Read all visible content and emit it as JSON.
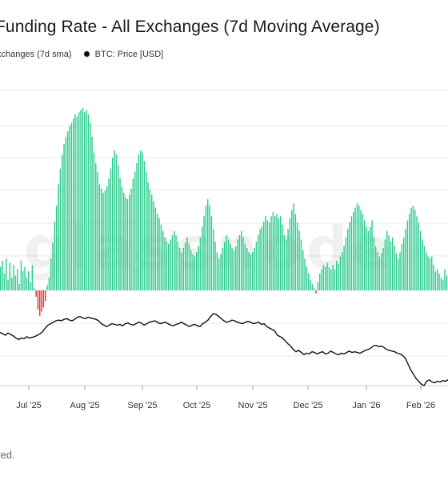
{
  "title": "Funding Rate - All Exchanges (7d Moving Average)",
  "legend": [
    {
      "label": "xchanges (7d sma)"
    },
    {
      "label": "BTC: Price [USD]",
      "color": "#000000"
    }
  ],
  "footer": "ved.",
  "watermark": "glassnode",
  "colors": {
    "positive": "#2ecc8f",
    "negative": "#e03a3a",
    "price": "#111111",
    "grid": "#ebebeb"
  },
  "chart_data": [
    {
      "type": "bar",
      "name": "Funding Rate (7d sma)",
      "x_axis": "time",
      "x_ticks": [
        "Jul '25",
        "Aug '25",
        "Sep '25",
        "Oct '25",
        "Nov '25",
        "Dec '25",
        "Jan '26",
        "Feb '26"
      ],
      "y_scale_note": "relative (axis labels not visible); 0 = zero line",
      "series": [
        {
          "values": [
            0.22,
            0.28,
            0.16,
            0.3,
            0.1,
            0.26,
            0.12,
            0.24,
            0.14,
            0.2,
            0.06,
            0.28,
            0.18,
            0.22,
            0.12,
            0.18,
            0.08,
            0.24,
            0.02,
            -0.06,
            -0.18,
            -0.24,
            -0.2,
            -0.16,
            -0.1,
            0.05,
            0.12,
            0.3,
            0.45,
            0.65,
            0.8,
            1.0,
            1.15,
            1.28,
            1.38,
            1.45,
            1.5,
            1.55,
            1.58,
            1.62,
            1.66,
            1.64,
            1.68,
            1.7,
            1.72,
            1.68,
            1.7,
            1.66,
            1.58,
            1.45,
            1.3,
            1.2,
            1.12,
            1.0,
            0.96,
            0.92,
            0.94,
            0.98,
            1.05,
            1.15,
            1.25,
            1.32,
            1.28,
            1.18,
            1.06,
            0.98,
            0.92,
            0.88,
            0.86,
            0.9,
            0.96,
            1.05,
            1.12,
            1.2,
            1.28,
            1.32,
            1.3,
            1.22,
            1.12,
            1.02,
            0.95,
            0.9,
            0.84,
            0.78,
            0.72,
            0.68,
            0.62,
            0.56,
            0.5,
            0.46,
            0.44,
            0.48,
            0.52,
            0.56,
            0.52,
            0.46,
            0.4,
            0.36,
            0.4,
            0.45,
            0.5,
            0.44,
            0.38,
            0.34,
            0.32,
            0.36,
            0.42,
            0.5,
            0.6,
            0.7,
            0.8,
            0.86,
            0.8,
            0.7,
            0.58,
            0.46,
            0.36,
            0.3,
            0.34,
            0.4,
            0.46,
            0.52,
            0.48,
            0.44,
            0.4,
            0.38,
            0.42,
            0.48,
            0.52,
            0.56,
            0.5,
            0.44,
            0.4,
            0.36,
            0.34,
            0.36,
            0.4,
            0.46,
            0.52,
            0.58,
            0.6,
            0.65,
            0.7,
            0.66,
            0.64,
            0.7,
            0.74,
            0.7,
            0.72,
            0.68,
            0.7,
            0.62,
            0.52,
            0.48,
            0.58,
            0.68,
            0.76,
            0.82,
            0.72,
            0.64,
            0.56,
            0.48,
            0.38,
            0.3,
            0.22,
            0.16,
            0.1,
            0.06,
            0.02,
            -0.03,
            0.08,
            0.16,
            0.2,
            0.24,
            0.22,
            0.26,
            0.22,
            0.2,
            0.24,
            0.2,
            0.28,
            0.25,
            0.32,
            0.36,
            0.42,
            0.5,
            0.58,
            0.64,
            0.7,
            0.74,
            0.78,
            0.82,
            0.8,
            0.76,
            0.72,
            0.66,
            0.6,
            0.56,
            0.6,
            0.66,
            0.5,
            0.42,
            0.36,
            0.32,
            0.35,
            0.4,
            0.48,
            0.56,
            0.52,
            0.46,
            0.5,
            0.42,
            0.35,
            0.3,
            0.36,
            0.44,
            0.5,
            0.58,
            0.66,
            0.72,
            0.78,
            0.8,
            0.76,
            0.7,
            0.64,
            0.56,
            0.48,
            0.42,
            0.36,
            0.32,
            0.3,
            0.32,
            0.24,
            0.18,
            0.2,
            0.16,
            0.12,
            0.1,
            0.2,
            0.14
          ]
        }
      ]
    },
    {
      "type": "line",
      "name": "BTC: Price [USD]",
      "x_axis": "time",
      "y_scale_note": "relative (axis labels not visible)",
      "series": [
        {
          "name": "BTC: Price [USD]",
          "values": [
            0.74,
            0.72,
            0.7,
            0.73,
            0.71,
            0.69,
            0.66,
            0.64,
            0.66,
            0.65,
            0.68,
            0.66,
            0.67,
            0.68,
            0.7,
            0.72,
            0.75,
            0.8,
            0.84,
            0.86,
            0.88,
            0.9,
            0.91,
            0.9,
            0.92,
            0.93,
            0.91,
            0.9,
            0.92,
            0.95,
            0.96,
            0.94,
            0.93,
            0.95,
            0.94,
            0.93,
            0.92,
            0.9,
            0.86,
            0.84,
            0.82,
            0.84,
            0.86,
            0.85,
            0.84,
            0.85,
            0.83,
            0.86,
            0.87,
            0.85,
            0.84,
            0.86,
            0.88,
            0.87,
            0.84,
            0.86,
            0.88,
            0.89,
            0.9,
            0.88,
            0.86,
            0.87,
            0.88,
            0.86,
            0.84,
            0.83,
            0.85,
            0.86,
            0.88,
            0.86,
            0.84,
            0.82,
            0.84,
            0.85,
            0.83,
            0.82,
            0.86,
            0.88,
            0.91,
            0.96,
            1.0,
            0.99,
            0.96,
            0.93,
            0.9,
            0.88,
            0.89,
            0.91,
            0.9,
            0.88,
            0.87,
            0.86,
            0.88,
            0.89,
            0.88,
            0.86,
            0.87,
            0.88,
            0.85,
            0.86,
            0.82,
            0.8,
            0.78,
            0.76,
            0.7,
            0.68,
            0.66,
            0.62,
            0.58,
            0.55,
            0.5,
            0.47,
            0.49,
            0.46,
            0.43,
            0.45,
            0.44,
            0.47,
            0.46,
            0.44,
            0.46,
            0.47,
            0.44,
            0.45,
            0.48,
            0.46,
            0.44,
            0.43,
            0.45,
            0.44,
            0.46,
            0.48,
            0.46,
            0.47,
            0.46,
            0.45,
            0.47,
            0.49,
            0.5,
            0.52,
            0.55,
            0.56,
            0.54,
            0.55,
            0.53,
            0.5,
            0.49,
            0.48,
            0.47,
            0.45,
            0.44,
            0.42,
            0.38,
            0.3,
            0.22,
            0.16,
            0.1,
            0.06,
            0.02,
            0.0,
            0.06,
            0.08,
            0.05,
            0.04,
            0.06,
            0.05,
            0.07,
            0.06,
            0.08
          ]
        }
      ]
    }
  ]
}
